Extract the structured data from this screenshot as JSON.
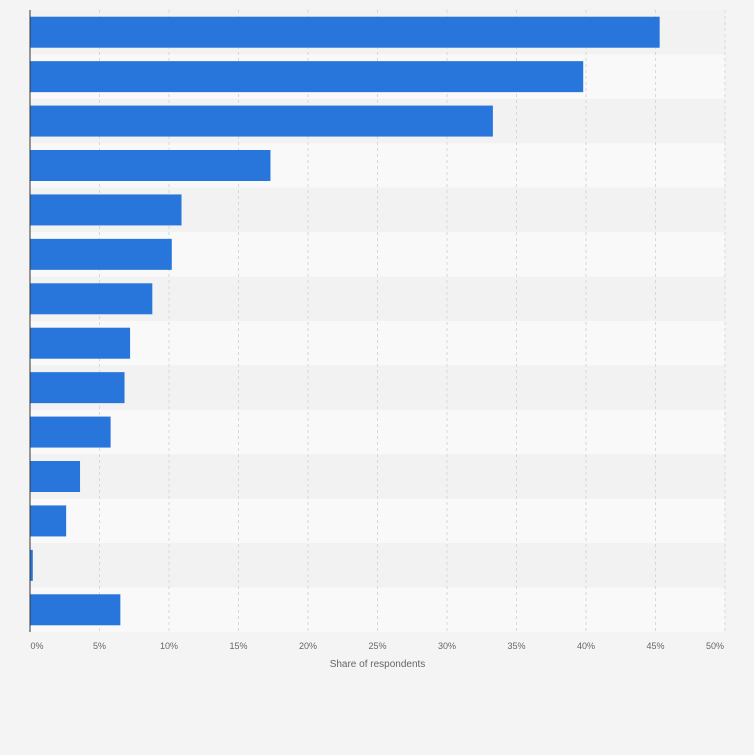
{
  "chart_data": {
    "type": "bar",
    "orientation": "horizontal",
    "categories": [
      "",
      "",
      "",
      "",
      "",
      "",
      "",
      "",
      "",
      "",
      "",
      "",
      "",
      ""
    ],
    "values": [
      45.3,
      39.8,
      33.3,
      17.3,
      10.9,
      10.2,
      8.8,
      7.2,
      6.8,
      5.8,
      3.6,
      2.6,
      0.2,
      6.5
    ],
    "xlim": [
      0,
      50
    ],
    "xticks": [
      "0%",
      "5%",
      "10%",
      "15%",
      "20%",
      "25%",
      "30%",
      "35%",
      "40%",
      "45%",
      "50%"
    ],
    "xlabel": "Share of respondents",
    "grid": true,
    "bar_color": "#2875dc"
  }
}
